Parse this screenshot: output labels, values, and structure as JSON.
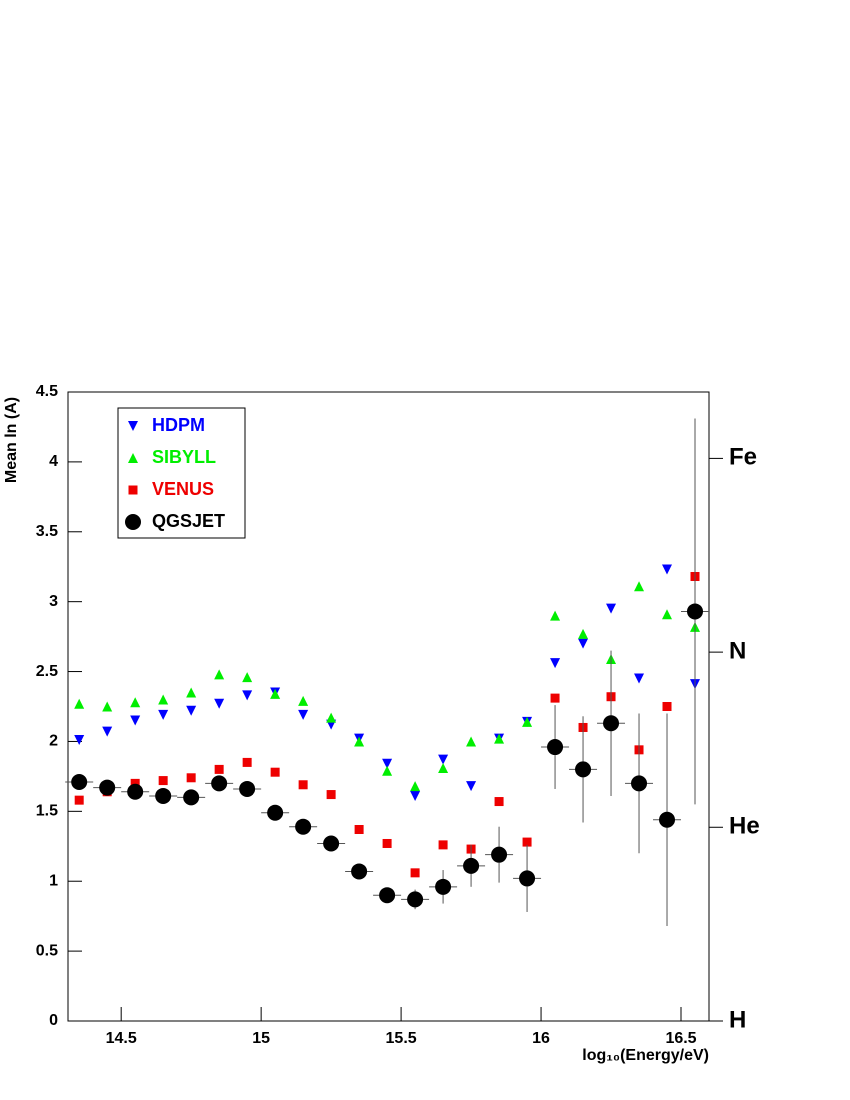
{
  "chart_data": {
    "type": "scatter",
    "ylabel": "Mean ln (A)",
    "xlabel": "log₁₀(Energy/eV)",
    "x": [
      14.35,
      14.45,
      14.55,
      14.65,
      14.75,
      14.85,
      14.95,
      15.05,
      15.15,
      15.25,
      15.35,
      15.45,
      15.55,
      15.65,
      15.75,
      15.85,
      15.95,
      16.05,
      16.15,
      16.25,
      16.35,
      16.45,
      16.55
    ],
    "x_error": 0.05,
    "xlim": [
      14.31,
      16.6
    ],
    "ylim": [
      0,
      4.5
    ],
    "xticks": [
      14.5,
      15,
      15.5,
      16,
      16.5
    ],
    "yticks": [
      0,
      0.5,
      1,
      1.5,
      2,
      2.5,
      3,
      3.5,
      4,
      4.5
    ],
    "y2lim": [
      0,
      4.5
    ],
    "y2ticks": [
      {
        "value": 0,
        "label": "H"
      },
      {
        "value": 1.386,
        "label": "He"
      },
      {
        "value": 2.639,
        "label": "N"
      },
      {
        "value": 4.025,
        "label": "Fe"
      }
    ],
    "legend": "upper left",
    "series": [
      {
        "name": "HDPM",
        "color": "#0000ff",
        "marker": "triangle-down",
        "values": [
          2.01,
          2.07,
          2.15,
          2.19,
          2.22,
          2.27,
          2.33,
          2.35,
          2.19,
          2.12,
          2.02,
          1.84,
          1.61,
          1.87,
          1.68,
          2.02,
          2.14,
          2.56,
          2.7,
          2.95,
          2.45,
          3.23,
          2.41
        ]
      },
      {
        "name": "SIBYLL",
        "color": "#00ee00",
        "marker": "triangle-up",
        "values": [
          2.27,
          2.25,
          2.28,
          2.3,
          2.35,
          2.48,
          2.46,
          2.34,
          2.29,
          2.17,
          2.0,
          1.79,
          1.68,
          1.81,
          2.0,
          2.02,
          2.14,
          2.9,
          2.77,
          2.59,
          3.11,
          2.91,
          2.82
        ]
      },
      {
        "name": "VENUS",
        "color": "#ee0000",
        "marker": "square",
        "values": [
          1.58,
          1.64,
          1.7,
          1.72,
          1.74,
          1.8,
          1.85,
          1.78,
          1.69,
          1.62,
          1.37,
          1.27,
          1.06,
          1.26,
          1.23,
          1.57,
          1.28,
          2.31,
          2.1,
          2.32,
          1.94,
          2.25,
          3.18
        ]
      },
      {
        "name": "QGSJET",
        "color": "#000000",
        "marker": "circle",
        "values": [
          1.71,
          1.67,
          1.64,
          1.61,
          1.6,
          1.7,
          1.66,
          1.49,
          1.39,
          1.27,
          1.07,
          0.9,
          0.87,
          0.96,
          1.11,
          1.19,
          1.02,
          1.96,
          1.8,
          2.13,
          1.7,
          1.44,
          2.93
        ],
        "errors": [
          0.02,
          0.02,
          0.02,
          0.02,
          0.02,
          0.02,
          0.02,
          0.02,
          0.03,
          0.03,
          0.04,
          0.05,
          0.07,
          0.12,
          0.15,
          0.2,
          0.24,
          0.3,
          0.38,
          0.52,
          0.5,
          0.76,
          1.38
        ]
      }
    ]
  }
}
